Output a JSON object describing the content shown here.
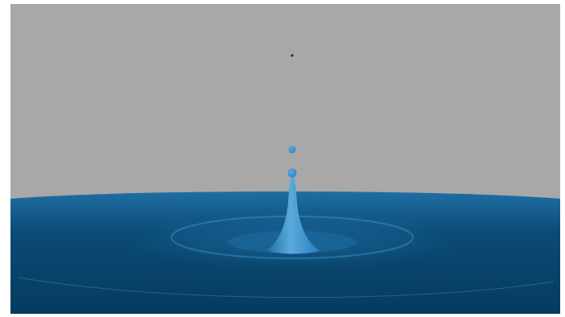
{
  "scene": {
    "subject": "water-droplet-splash",
    "colors": {
      "background": "#a8a8a8",
      "water": "#0a4a75",
      "water_dark": "#063b5f",
      "water_light": "#1f6ea3",
      "column": "#2a80bd",
      "column_highlight": "#5aa9dc",
      "droplet": "#2d86c2",
      "speck": "#2b2b2b"
    }
  }
}
